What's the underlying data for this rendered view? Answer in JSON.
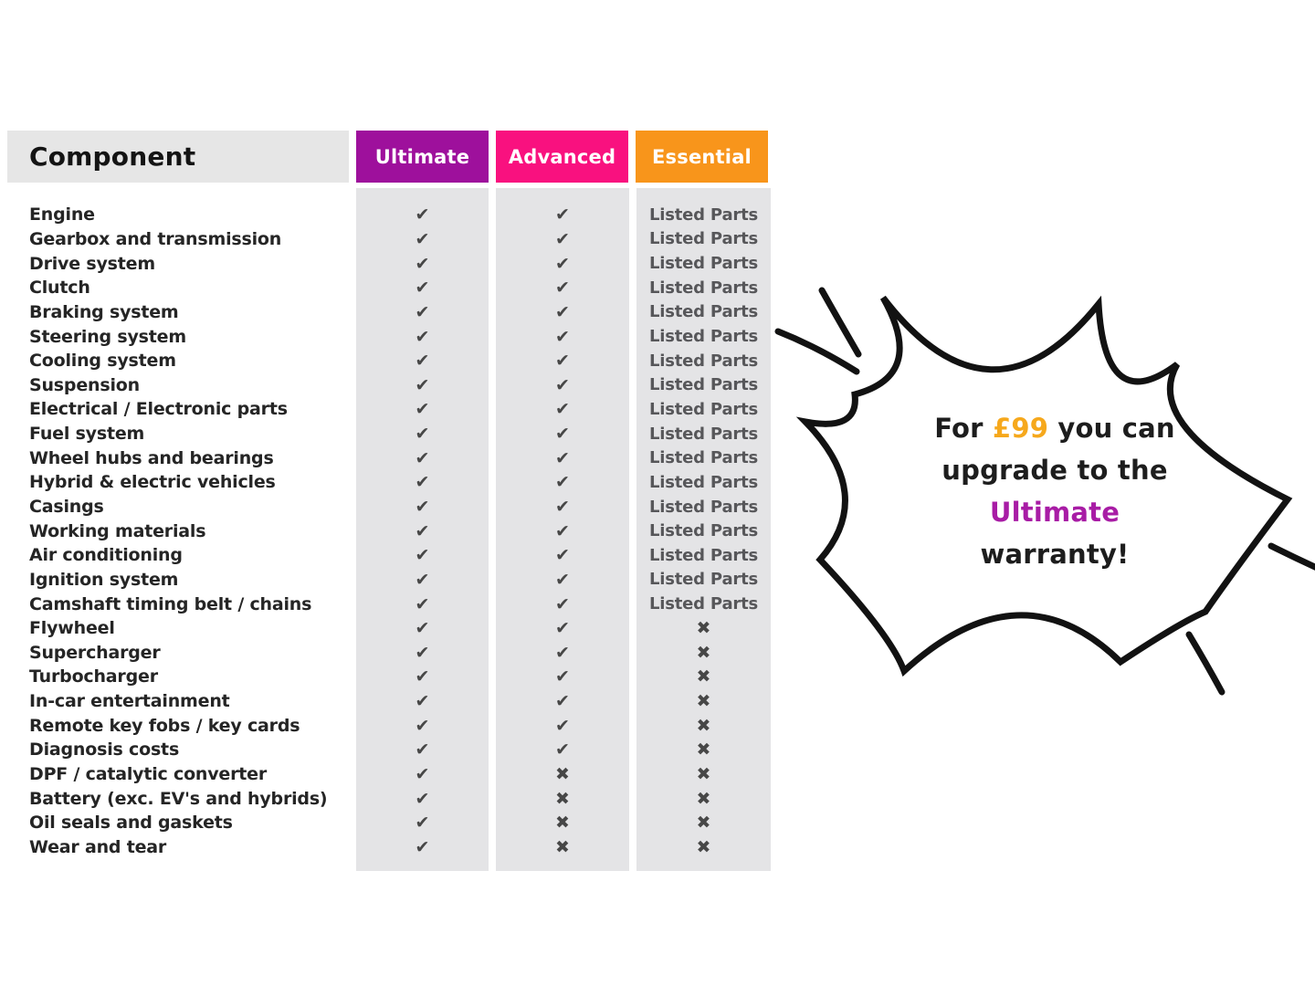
{
  "header": {
    "component_label": "Component",
    "plans": [
      {
        "label": "Ultimate",
        "color": "#9E109C"
      },
      {
        "label": "Advanced",
        "color": "#F9117F"
      },
      {
        "label": "Essential",
        "color": "#F8951B"
      }
    ]
  },
  "symbols": {
    "check": "✔",
    "cross": "✖",
    "listed": "Listed Parts"
  },
  "colors": {
    "header_bg": "#E6E6E6",
    "column_bg": "#E4E4E6",
    "mark": "#474747",
    "listed_text": "#57575A",
    "row_text": "#252525",
    "burst_outline": "#121212",
    "burst_fill": "#ffffff"
  },
  "chart_data": {
    "type": "table",
    "columns": [
      "Component",
      "Ultimate",
      "Advanced",
      "Essential"
    ],
    "rows": [
      [
        "Engine",
        "check",
        "check",
        "listed"
      ],
      [
        "Gearbox and transmission",
        "check",
        "check",
        "listed"
      ],
      [
        "Drive system",
        "check",
        "check",
        "listed"
      ],
      [
        "Clutch",
        "check",
        "check",
        "listed"
      ],
      [
        "Braking system",
        "check",
        "check",
        "listed"
      ],
      [
        "Steering system",
        "check",
        "check",
        "listed"
      ],
      [
        "Cooling system",
        "check",
        "check",
        "listed"
      ],
      [
        "Suspension",
        "check",
        "check",
        "listed"
      ],
      [
        "Electrical / Electronic parts",
        "check",
        "check",
        "listed"
      ],
      [
        "Fuel system",
        "check",
        "check",
        "listed"
      ],
      [
        "Wheel hubs and bearings",
        "check",
        "check",
        "listed"
      ],
      [
        "Hybrid & electric vehicles",
        "check",
        "check",
        "listed"
      ],
      [
        "Casings",
        "check",
        "check",
        "listed"
      ],
      [
        "Working materials",
        "check",
        "check",
        "listed"
      ],
      [
        "Air conditioning",
        "check",
        "check",
        "listed"
      ],
      [
        "Ignition system",
        "check",
        "check",
        "listed"
      ],
      [
        "Camshaft timing belt / chains",
        "check",
        "check",
        "listed"
      ],
      [
        "Flywheel",
        "check",
        "check",
        "cross"
      ],
      [
        "Supercharger",
        "check",
        "check",
        "cross"
      ],
      [
        "Turbocharger",
        "check",
        "check",
        "cross"
      ],
      [
        "In-car entertainment",
        "check",
        "check",
        "cross"
      ],
      [
        "Remote key fobs / key cards",
        "check",
        "check",
        "cross"
      ],
      [
        "Diagnosis costs",
        "check",
        "check",
        "cross"
      ],
      [
        "DPF / catalytic converter",
        "check",
        "cross",
        "cross"
      ],
      [
        "Battery (exc. EV's and hybrids)",
        "check",
        "cross",
        "cross"
      ],
      [
        "Oil seals and gaskets",
        "check",
        "cross",
        "cross"
      ],
      [
        "Wear and tear",
        "check",
        "cross",
        "cross"
      ]
    ]
  },
  "bubble": {
    "lines": [
      {
        "segments": [
          {
            "text": "For ",
            "color": "#1d1d1d"
          },
          {
            "text": "£99",
            "color": "#F6A81C"
          },
          {
            "text": " you can",
            "color": "#1d1d1d"
          }
        ]
      },
      {
        "segments": [
          {
            "text": "upgrade to the",
            "color": "#1d1d1d"
          }
        ]
      },
      {
        "segments": [
          {
            "text": "Ultimate",
            "color": "#A81CA5"
          }
        ]
      },
      {
        "segments": [
          {
            "text": "warranty!",
            "color": "#1d1d1d"
          }
        ]
      }
    ]
  }
}
